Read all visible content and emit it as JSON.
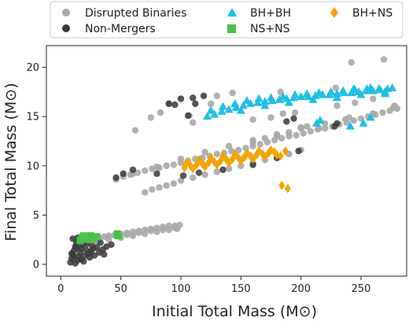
{
  "chart_data": {
    "type": "scatter",
    "xlabel": "Initial Total Mass (M⊙)",
    "ylabel": "Final Total Mass (M⊙)",
    "xlim": [
      -12,
      288
    ],
    "ylim": [
      -1.2,
      22.2
    ],
    "xticks": [
      0,
      50,
      100,
      150,
      200,
      250
    ],
    "yticks": [
      0,
      5,
      10,
      15,
      20
    ],
    "grid": false,
    "legend_position": "top",
    "legend_columns": 3,
    "series": [
      {
        "name": "Disrupted Binaries",
        "marker": "circle",
        "color": "#a9a9a9",
        "points": [
          [
            16,
            1.8
          ],
          [
            20,
            2.2
          ],
          [
            24,
            2.4
          ],
          [
            28,
            2.6
          ],
          [
            32,
            2.7
          ],
          [
            36,
            2.8
          ],
          [
            40,
            2.9
          ],
          [
            45,
            3.0
          ],
          [
            50,
            3.1
          ],
          [
            55,
            3.2
          ],
          [
            60,
            3.3
          ],
          [
            65,
            3.4
          ],
          [
            70,
            3.5
          ],
          [
            75,
            3.6
          ],
          [
            80,
            3.7
          ],
          [
            85,
            3.8
          ],
          [
            90,
            3.9
          ],
          [
            95,
            3.9
          ],
          [
            99,
            4.0
          ],
          [
            30,
            2.3
          ],
          [
            40,
            2.5
          ],
          [
            50,
            2.7
          ],
          [
            60,
            2.9
          ],
          [
            70,
            3.1
          ],
          [
            80,
            3.3
          ],
          [
            90,
            3.5
          ],
          [
            97,
            3.6
          ],
          [
            45,
            2.9
          ],
          [
            65,
            3.2
          ],
          [
            85,
            3.5
          ],
          [
            55,
            3.0
          ],
          [
            75,
            3.4
          ],
          [
            95,
            3.7
          ],
          [
            46,
            8.6
          ],
          [
            52,
            8.9
          ],
          [
            58,
            9.1
          ],
          [
            64,
            9.3
          ],
          [
            70,
            9.5
          ],
          [
            76,
            9.7
          ],
          [
            82,
            9.8
          ],
          [
            88,
            10.0
          ],
          [
            94,
            10.1
          ],
          [
            100,
            10.3
          ],
          [
            106,
            10.5
          ],
          [
            112,
            10.7
          ],
          [
            118,
            10.8
          ],
          [
            124,
            11.0
          ],
          [
            130,
            11.2
          ],
          [
            136,
            11.3
          ],
          [
            142,
            11.5
          ],
          [
            148,
            11.6
          ],
          [
            154,
            11.8
          ],
          [
            160,
            12.0
          ],
          [
            166,
            12.2
          ],
          [
            172,
            12.4
          ],
          [
            178,
            12.6
          ],
          [
            184,
            12.8
          ],
          [
            190,
            13.0
          ],
          [
            196,
            13.1
          ],
          [
            202,
            13.3
          ],
          [
            208,
            13.5
          ],
          [
            214,
            13.7
          ],
          [
            220,
            13.8
          ],
          [
            226,
            14.0
          ],
          [
            232,
            14.2
          ],
          [
            238,
            14.4
          ],
          [
            244,
            14.6
          ],
          [
            250,
            14.8
          ],
          [
            256,
            15.0
          ],
          [
            262,
            15.2
          ],
          [
            268,
            15.4
          ],
          [
            274,
            15.6
          ],
          [
            280,
            15.8
          ],
          [
            60,
            9.2
          ],
          [
            80,
            9.9
          ],
          [
            100,
            10.7
          ],
          [
            120,
            11.4
          ],
          [
            140,
            12.0
          ],
          [
            160,
            12.6
          ],
          [
            180,
            13.2
          ],
          [
            200,
            13.8
          ],
          [
            220,
            14.3
          ],
          [
            240,
            14.9
          ],
          [
            260,
            15.3
          ],
          [
            277,
            15.9
          ],
          [
            70,
            7.3
          ],
          [
            76,
            7.6
          ],
          [
            82,
            7.8
          ],
          [
            88,
            8.0
          ],
          [
            94,
            8.2
          ],
          [
            100,
            8.5
          ],
          [
            110,
            8.8
          ],
          [
            120,
            9.1
          ],
          [
            130,
            9.4
          ],
          [
            140,
            9.7
          ],
          [
            150,
            10.0
          ],
          [
            160,
            10.3
          ],
          [
            170,
            10.6
          ],
          [
            180,
            10.9
          ],
          [
            190,
            11.2
          ],
          [
            200,
            11.6
          ],
          [
            160,
            12.4
          ],
          [
            170,
            12.8
          ],
          [
            180,
            13.0
          ],
          [
            190,
            13.4
          ],
          [
            200,
            13.9
          ],
          [
            205,
            14.0
          ],
          [
            215,
            13.8
          ],
          [
            160,
            14.7
          ],
          [
            175,
            14.9
          ],
          [
            195,
            15.4
          ],
          [
            185,
            15.3
          ],
          [
            230,
            16.1
          ],
          [
            245,
            16.4
          ],
          [
            260,
            16.8
          ],
          [
            242,
            20.5
          ],
          [
            269,
            20.8
          ],
          [
            125,
            16.3
          ],
          [
            130,
            17.1
          ],
          [
            143,
            17.4
          ],
          [
            183,
            17.5
          ],
          [
            229,
            17.9
          ],
          [
            278,
            16.1
          ],
          [
            62,
            13.6
          ],
          [
            75,
            14.9
          ],
          [
            83,
            15.4
          ],
          [
            107,
            15.1
          ],
          [
            90,
            16.3
          ],
          [
            205,
            17.1
          ],
          [
            110,
            14.4
          ],
          [
            237,
            14.7
          ]
        ]
      },
      {
        "name": "Non-Mergers",
        "marker": "circle",
        "color": "#383838",
        "points": [
          [
            8,
            0.2
          ],
          [
            9,
            0.6
          ],
          [
            10,
            1.0
          ],
          [
            11,
            1.4
          ],
          [
            12,
            1.8
          ],
          [
            13,
            2.2
          ],
          [
            14,
            0.4
          ],
          [
            15,
            0.8
          ],
          [
            16,
            1.2
          ],
          [
            17,
            1.6
          ],
          [
            18,
            2.0
          ],
          [
            19,
            0.3
          ],
          [
            20,
            0.9
          ],
          [
            21,
            1.5
          ],
          [
            22,
            2.1
          ],
          [
            24,
            0.7
          ],
          [
            25,
            1.3
          ],
          [
            26,
            1.9
          ],
          [
            28,
            0.9
          ],
          [
            30,
            1.7
          ],
          [
            32,
            1.2
          ],
          [
            35,
            1.5
          ],
          [
            38,
            1.8
          ],
          [
            42,
            2.0
          ],
          [
            10,
            2.6
          ],
          [
            12,
            0.1
          ],
          [
            14,
            2.7
          ],
          [
            18,
            2.9
          ],
          [
            9,
            1.1
          ],
          [
            11,
            0.8
          ],
          [
            13,
            1.7
          ],
          [
            15,
            2.3
          ],
          [
            17,
            0.5
          ],
          [
            23,
            1.1
          ],
          [
            27,
            1.6
          ],
          [
            33,
            2.2
          ],
          [
            36,
            1.0
          ],
          [
            46,
            8.8
          ],
          [
            52,
            9.2
          ],
          [
            60,
            9.6
          ],
          [
            80,
            9.2
          ],
          [
            102,
            9.0
          ],
          [
            115,
            9.3
          ],
          [
            135,
            9.6
          ],
          [
            160,
            10.1
          ],
          [
            180,
            10.8
          ],
          [
            198,
            11.5
          ],
          [
            106,
            15.1
          ],
          [
            95,
            16.2
          ],
          [
            90,
            16.3
          ],
          [
            100,
            16.8
          ],
          [
            110,
            16.9
          ],
          [
            119,
            17.1
          ],
          [
            112,
            16.3
          ],
          [
            230,
            14.3
          ],
          [
            194,
            14.8
          ],
          [
            188,
            14.5
          ],
          [
            228,
            14.0
          ]
        ]
      },
      {
        "name": "BH+BH",
        "marker": "triangle",
        "color": "#1fbfe6",
        "points": [
          [
            122,
            15.0
          ],
          [
            128,
            15.2
          ],
          [
            134,
            15.5
          ],
          [
            140,
            15.7
          ],
          [
            146,
            15.9
          ],
          [
            152,
            16.1
          ],
          [
            158,
            16.3
          ],
          [
            164,
            16.4
          ],
          [
            170,
            16.5
          ],
          [
            176,
            16.6
          ],
          [
            182,
            16.7
          ],
          [
            188,
            16.8
          ],
          [
            194,
            16.9
          ],
          [
            200,
            17.0
          ],
          [
            206,
            17.0
          ],
          [
            212,
            17.1
          ],
          [
            218,
            17.2
          ],
          [
            224,
            17.2
          ],
          [
            230,
            17.3
          ],
          [
            236,
            17.4
          ],
          [
            242,
            17.4
          ],
          [
            248,
            17.5
          ],
          [
            254,
            17.6
          ],
          [
            260,
            17.6
          ],
          [
            266,
            17.7
          ],
          [
            272,
            17.8
          ],
          [
            125,
            15.6
          ],
          [
            135,
            16.0
          ],
          [
            145,
            16.3
          ],
          [
            155,
            16.6
          ],
          [
            165,
            16.8
          ],
          [
            175,
            16.9
          ],
          [
            185,
            17.0
          ],
          [
            195,
            17.2
          ],
          [
            205,
            17.3
          ],
          [
            215,
            17.4
          ],
          [
            225,
            17.5
          ],
          [
            235,
            17.6
          ],
          [
            245,
            17.7
          ],
          [
            255,
            17.8
          ],
          [
            265,
            17.8
          ],
          [
            276,
            17.9
          ],
          [
            150,
            15.6
          ],
          [
            170,
            16.1
          ],
          [
            190,
            16.4
          ],
          [
            210,
            16.7
          ],
          [
            230,
            16.9
          ],
          [
            250,
            17.2
          ],
          [
            270,
            17.5
          ],
          [
            216,
            14.6
          ],
          [
            213,
            14.3
          ],
          [
            258,
            14.9
          ],
          [
            252,
            14.3
          ],
          [
            241,
            14.0
          ],
          [
            258,
            17.9
          ],
          [
            244,
            17.8
          ],
          [
            270,
            17.3
          ]
        ]
      },
      {
        "name": "NS+NS",
        "marker": "square",
        "color": "#4ac24a",
        "points": [
          [
            16,
            2.4
          ],
          [
            18,
            2.7
          ],
          [
            20,
            2.6
          ],
          [
            22,
            2.8
          ],
          [
            24,
            2.5
          ],
          [
            26,
            2.7
          ],
          [
            28,
            2.6
          ],
          [
            30,
            2.8
          ],
          [
            48,
            2.9
          ],
          [
            47,
            3.1
          ],
          [
            19,
            2.9
          ],
          [
            25,
            2.9
          ],
          [
            17,
            2.5
          ]
        ]
      },
      {
        "name": "BH+NS",
        "marker": "diamond",
        "color": "#f5a300",
        "points": [
          [
            103,
            9.8
          ],
          [
            108,
            10.0
          ],
          [
            113,
            10.1
          ],
          [
            118,
            10.2
          ],
          [
            123,
            10.3
          ],
          [
            128,
            10.4
          ],
          [
            133,
            10.5
          ],
          [
            138,
            10.6
          ],
          [
            143,
            10.7
          ],
          [
            148,
            10.8
          ],
          [
            153,
            10.9
          ],
          [
            158,
            11.0
          ],
          [
            163,
            11.1
          ],
          [
            168,
            11.2
          ],
          [
            173,
            11.3
          ],
          [
            178,
            11.4
          ],
          [
            105,
            10.4
          ],
          [
            115,
            10.6
          ],
          [
            125,
            10.8
          ],
          [
            135,
            11.0
          ],
          [
            145,
            11.2
          ],
          [
            155,
            11.3
          ],
          [
            165,
            11.5
          ],
          [
            175,
            11.6
          ],
          [
            110,
            9.7
          ],
          [
            120,
            9.9
          ],
          [
            130,
            10.1
          ],
          [
            140,
            10.3
          ],
          [
            150,
            10.5
          ],
          [
            160,
            10.7
          ],
          [
            170,
            10.9
          ],
          [
            180,
            11.1
          ],
          [
            187,
            11.5
          ],
          [
            183,
            11.0
          ],
          [
            184,
            8.0
          ],
          [
            189,
            7.7
          ]
        ]
      }
    ]
  }
}
